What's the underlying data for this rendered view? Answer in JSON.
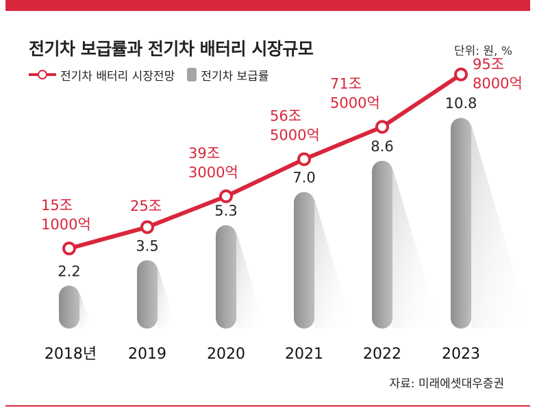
{
  "title": "전기차 보급률과 전기차 배터리 시장규모",
  "unit": "단위: 원, %",
  "legend": {
    "line_label": "전기차 배터리 시장전망",
    "bar_label": "전기차 보급률"
  },
  "source": "자료: 미래에셋대우증권",
  "colors": {
    "accent": "#d9263b",
    "bar": "#a5a5a7"
  },
  "chart_data": {
    "type": "bar+line",
    "categories": [
      "2018년",
      "2019",
      "2020",
      "2021",
      "2022",
      "2023"
    ],
    "series": [
      {
        "name": "전기차 보급률",
        "type": "bar",
        "unit": "%",
        "values": [
          2.2,
          3.5,
          5.3,
          7.0,
          8.6,
          10.8
        ],
        "labels": [
          "2.2",
          "3.5",
          "5.3",
          "7.0",
          "8.6",
          "10.8"
        ]
      },
      {
        "name": "전기차 배터리 시장전망",
        "type": "line",
        "unit": "원",
        "values_krw_trillion": [
          15.1,
          25,
          39.3,
          56.5,
          71.5,
          95.8
        ],
        "labels": [
          [
            "15조",
            "1000억"
          ],
          [
            "25조"
          ],
          [
            "39조",
            "3000억"
          ],
          [
            "56조",
            "5000억"
          ],
          [
            "71조",
            "5000억"
          ],
          [
            "95조",
            "8000억"
          ]
        ]
      }
    ]
  }
}
